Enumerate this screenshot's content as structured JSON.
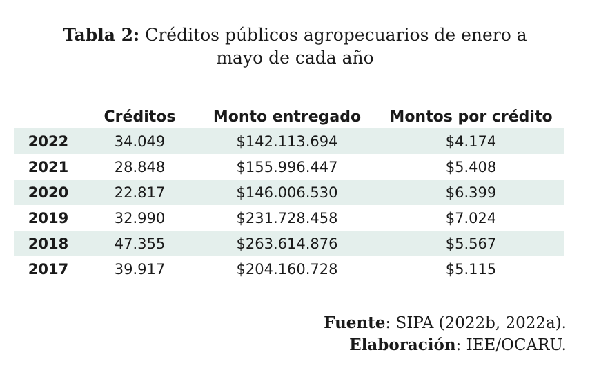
{
  "title": {
    "label": "Tabla 2:",
    "text_line1": " Créditos públicos agropecuarios de enero a",
    "text_line2": "mayo de cada año"
  },
  "table": {
    "headers": [
      "",
      "Créditos",
      "Monto entregado",
      "Montos por crédito"
    ],
    "rows": [
      {
        "year": "2022",
        "creditos": "34.049",
        "monto": "$142.113.694",
        "mpc": "$4.174"
      },
      {
        "year": "2021",
        "creditos": "28.848",
        "monto": "$155.996.447",
        "mpc": "$5.408"
      },
      {
        "year": "2020",
        "creditos": "22.817",
        "monto": "$146.006.530",
        "mpc": "$6.399"
      },
      {
        "year": "2019",
        "creditos": "32.990",
        "monto": "$231.728.458",
        "mpc": "$7.024"
      },
      {
        "year": "2018",
        "creditos": "47.355",
        "monto": "$263.614.876",
        "mpc": "$5.567"
      },
      {
        "year": "2017",
        "creditos": "39.917",
        "monto": "$204.160.728",
        "mpc": "$5.115"
      }
    ],
    "shade_color": "#e4efec"
  },
  "source": {
    "fuente_label": "Fuente",
    "fuente_text": ": SIPA (2022b, 2022a).",
    "elab_label": "Elaboración",
    "elab_text": ": IEE/OCARU."
  }
}
